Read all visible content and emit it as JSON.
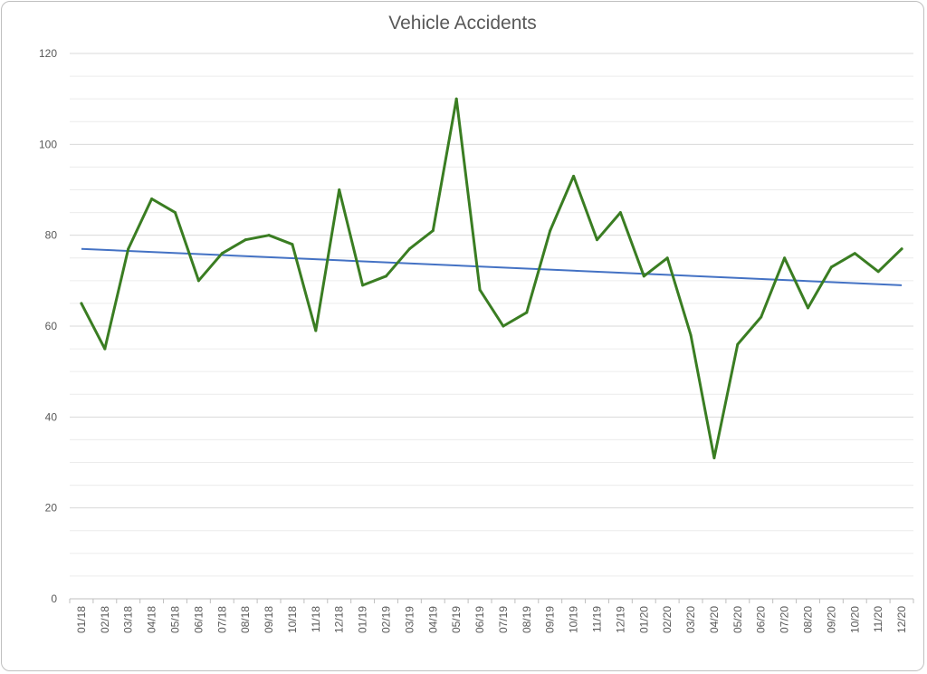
{
  "chart_data": {
    "type": "line",
    "title": "Vehicle Accidents",
    "xlabel": "",
    "ylabel": "",
    "categories": [
      "01/18",
      "02/18",
      "03/18",
      "04/18",
      "05/18",
      "06/18",
      "07/18",
      "08/18",
      "09/18",
      "10/18",
      "11/18",
      "12/18",
      "01/19",
      "02/19",
      "03/19",
      "04/19",
      "05/19",
      "06/19",
      "07/19",
      "08/19",
      "09/19",
      "10/19",
      "11/19",
      "12/19",
      "01/20",
      "02/20",
      "03/20",
      "04/20",
      "05/20",
      "06/20",
      "07/20",
      "08/20",
      "09/20",
      "10/20",
      "11/20",
      "12/20"
    ],
    "series": [
      {
        "values": [
          65,
          55,
          77,
          88,
          85,
          70,
          76,
          79,
          80,
          78,
          59,
          90,
          69,
          71,
          77,
          81,
          110,
          68,
          60,
          63,
          81,
          93,
          79,
          85,
          71,
          75,
          58,
          31,
          56,
          62,
          75,
          64,
          73,
          76,
          72,
          77
        ],
        "color": "#3a7d22"
      }
    ],
    "trendline": {
      "type": "linear",
      "start": 77,
      "end": 69,
      "color": "#4472c4"
    },
    "ylim": [
      0,
      120
    ],
    "yticks": [
      0,
      20,
      40,
      60,
      80,
      100,
      120
    ],
    "grid": true,
    "legend": "none"
  }
}
